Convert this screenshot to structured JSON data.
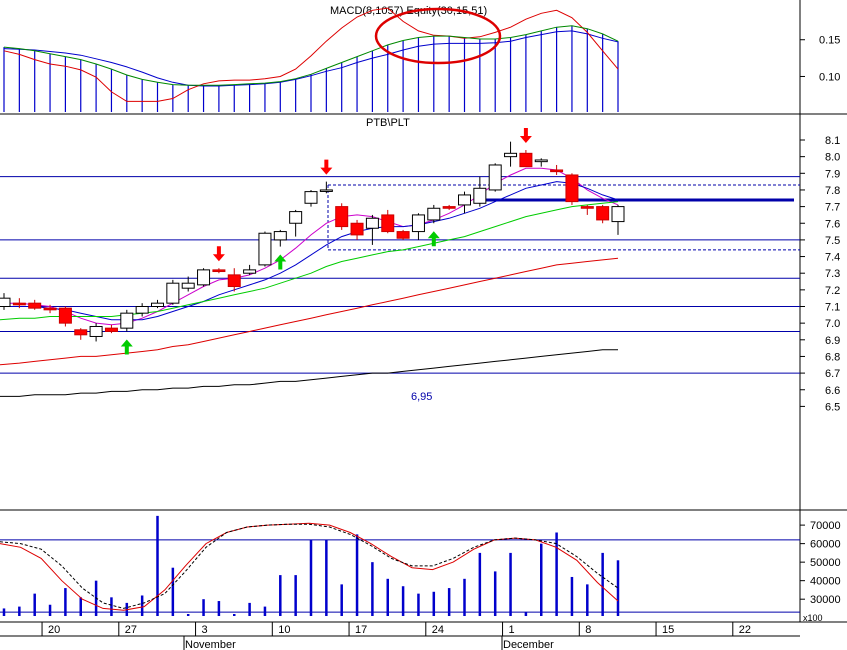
{
  "panels": {
    "top": {
      "label": "MACD(8,1057) Equity(30,15,51)",
      "y_ticks": [
        "0.15",
        "0.10"
      ]
    },
    "price": {
      "symbol": "PTB\\PLT",
      "y_ticks": [
        "8.1",
        "8.0",
        "7.9",
        "7.8",
        "7.7",
        "7.6",
        "7.5",
        "7.4",
        "7.3",
        "7.2",
        "7.1",
        "7.0",
        "6.9",
        "6.8",
        "6.7",
        "6.6",
        "6.5"
      ],
      "annotation": "6,95"
    },
    "volume": {
      "y_ticks": [
        "70000",
        "60000",
        "50000",
        "40000",
        "30000"
      ],
      "multiplier": "x100"
    }
  },
  "x_axis": {
    "day_labels": [
      "20",
      "27",
      "3",
      "10",
      "17",
      "24",
      "1",
      "8",
      "15",
      "22"
    ],
    "month_labels": [
      "November",
      "December"
    ]
  },
  "colors": {
    "up_body": "#ffffff",
    "down_body": "#ff0000",
    "ma_fast": "#cc00cc",
    "ma_mid": "#0000cc",
    "ma_slow": "#00cc00",
    "ma_long": "#dd0000",
    "ma_longest": "#000000",
    "hline": "#0000aa",
    "volume_bar": "#0000cc",
    "up_arrow": "#00cc00",
    "down_arrow": "#ff0000",
    "circle_blue": "#0000dd",
    "circle_red": "#dd0000"
  },
  "chart_data": [
    {
      "type": "candlestick",
      "title": "PTB\\PLT",
      "ylim": [
        6.45,
        8.15
      ],
      "x": [
        "Oct 17",
        "Oct 18",
        "Oct 19",
        "Oct 20",
        "Oct 21",
        "Oct 24",
        "Oct 25",
        "Oct 26",
        "Oct 27",
        "Oct 28",
        "Oct 31",
        "Nov 1",
        "Nov 2",
        "Nov 3",
        "Nov 4",
        "Nov 7",
        "Nov 8",
        "Nov 9",
        "Nov 10",
        "Nov 11",
        "Nov 14",
        "Nov 15",
        "Nov 16",
        "Nov 17",
        "Nov 18",
        "Nov 21",
        "Nov 22",
        "Nov 23",
        "Nov 24",
        "Nov 25",
        "Nov 28",
        "Nov 29",
        "Nov 30",
        "Dec 1",
        "Dec 2",
        "Dec 5",
        "Dec 6",
        "Dec 7",
        "Dec 8",
        "Dec 9",
        "Dec 12"
      ],
      "ohlc": [
        [
          7.1,
          7.18,
          7.08,
          7.15
        ],
        [
          7.12,
          7.15,
          7.09,
          7.11
        ],
        [
          7.12,
          7.14,
          7.08,
          7.09
        ],
        [
          7.09,
          7.11,
          7.06,
          7.08
        ],
        [
          7.09,
          7.1,
          6.98,
          7.0
        ],
        [
          6.96,
          6.97,
          6.9,
          6.93
        ],
        [
          6.92,
          7.0,
          6.89,
          6.98
        ],
        [
          6.97,
          6.99,
          6.94,
          6.95
        ],
        [
          6.97,
          7.08,
          6.95,
          7.06
        ],
        [
          7.06,
          7.12,
          7.04,
          7.1
        ],
        [
          7.1,
          7.14,
          7.09,
          7.12
        ],
        [
          7.12,
          7.26,
          7.11,
          7.24
        ],
        [
          7.21,
          7.28,
          7.19,
          7.24
        ],
        [
          7.23,
          7.33,
          7.22,
          7.32
        ],
        [
          7.32,
          7.33,
          7.3,
          7.31
        ],
        [
          7.29,
          7.33,
          7.19,
          7.22
        ],
        [
          7.3,
          7.35,
          7.29,
          7.32
        ],
        [
          7.35,
          7.55,
          7.34,
          7.54
        ],
        [
          7.5,
          7.56,
          7.46,
          7.55
        ],
        [
          7.6,
          7.68,
          7.52,
          7.67
        ],
        [
          7.72,
          7.8,
          7.7,
          7.79
        ],
        [
          7.8,
          7.85,
          7.78,
          7.8
        ],
        [
          7.7,
          7.72,
          7.56,
          7.58
        ],
        [
          7.6,
          7.62,
          7.5,
          7.53
        ],
        [
          7.57,
          7.65,
          7.47,
          7.63
        ],
        [
          7.65,
          7.68,
          7.54,
          7.55
        ],
        [
          7.55,
          7.56,
          7.5,
          7.51
        ],
        [
          7.55,
          7.66,
          7.5,
          7.65
        ],
        [
          7.62,
          7.71,
          7.6,
          7.69
        ],
        [
          7.7,
          7.71,
          7.68,
          7.69
        ],
        [
          7.71,
          7.79,
          7.66,
          7.77
        ],
        [
          7.72,
          7.88,
          7.7,
          7.81
        ],
        [
          7.8,
          7.96,
          7.79,
          7.95
        ],
        [
          8.0,
          8.09,
          7.94,
          8.02
        ],
        [
          8.02,
          8.04,
          7.94,
          7.94
        ],
        [
          7.97,
          7.99,
          7.94,
          7.98
        ],
        [
          7.92,
          7.95,
          7.89,
          7.91
        ],
        [
          7.89,
          7.9,
          7.71,
          7.73
        ],
        [
          7.7,
          7.71,
          7.65,
          7.69
        ],
        [
          7.7,
          7.71,
          7.6,
          7.62
        ],
        [
          7.61,
          7.71,
          7.53,
          7.7
        ]
      ],
      "moving_averages": [
        {
          "color": "#cc00cc",
          "values": [
            7.12,
            7.12,
            7.11,
            7.1,
            7.07,
            7.03,
            7.0,
            6.99,
            7.0,
            7.03,
            7.07,
            7.12,
            7.17,
            7.22,
            7.26,
            7.27,
            7.29,
            7.33,
            7.38,
            7.45,
            7.53,
            7.6,
            7.64,
            7.65,
            7.64,
            7.61,
            7.58,
            7.59,
            7.62,
            7.66,
            7.71,
            7.77,
            7.84,
            7.89,
            7.93,
            7.93,
            7.92,
            7.87,
            7.8,
            7.75,
            7.71
          ]
        },
        {
          "color": "#0000cc",
          "values": [
            7.1,
            7.1,
            7.1,
            7.09,
            7.08,
            7.06,
            7.04,
            7.02,
            7.02,
            7.02,
            7.04,
            7.07,
            7.1,
            7.13,
            7.17,
            7.2,
            7.23,
            7.26,
            7.3,
            7.35,
            7.41,
            7.47,
            7.52,
            7.55,
            7.57,
            7.58,
            7.58,
            7.59,
            7.61,
            7.63,
            7.66,
            7.69,
            7.73,
            7.77,
            7.81,
            7.83,
            7.85,
            7.84,
            7.81,
            7.77,
            7.74
          ]
        },
        {
          "color": "#00cc00",
          "values": [
            7.02,
            7.03,
            7.03,
            7.04,
            7.04,
            7.04,
            7.04,
            7.04,
            7.05,
            7.06,
            7.07,
            7.09,
            7.11,
            7.13,
            7.15,
            7.17,
            7.19,
            7.21,
            7.24,
            7.27,
            7.3,
            7.34,
            7.37,
            7.39,
            7.41,
            7.43,
            7.44,
            7.46,
            7.48,
            7.5,
            7.52,
            7.55,
            7.58,
            7.61,
            7.64,
            7.66,
            7.68,
            7.7,
            7.71,
            7.72,
            7.73
          ]
        },
        {
          "color": "#dd0000",
          "values": [
            6.75,
            6.76,
            6.77,
            6.78,
            6.79,
            6.8,
            6.8,
            6.81,
            6.82,
            6.83,
            6.84,
            6.86,
            6.87,
            6.89,
            6.91,
            6.93,
            6.95,
            6.97,
            6.99,
            7.01,
            7.03,
            7.05,
            7.07,
            7.09,
            7.11,
            7.13,
            7.15,
            7.17,
            7.19,
            7.21,
            7.23,
            7.25,
            7.27,
            7.29,
            7.31,
            7.33,
            7.35,
            7.36,
            7.37,
            7.38,
            7.39
          ]
        },
        {
          "color": "#000000",
          "values": [
            6.56,
            6.56,
            6.57,
            6.57,
            6.57,
            6.58,
            6.58,
            6.59,
            6.59,
            6.6,
            6.6,
            6.61,
            6.61,
            6.62,
            6.62,
            6.63,
            6.63,
            6.64,
            6.65,
            6.65,
            6.66,
            6.67,
            6.68,
            6.69,
            6.7,
            6.7,
            6.71,
            6.72,
            6.73,
            6.74,
            6.75,
            6.76,
            6.77,
            6.78,
            6.79,
            6.8,
            6.81,
            6.82,
            6.83,
            6.84,
            6.84
          ]
        }
      ],
      "horizontal_lines": [
        7.88,
        7.5,
        7.27,
        7.1,
        6.95,
        6.7
      ],
      "dashed_lines": [
        7.83,
        7.44
      ],
      "resistance_line": 7.74,
      "buy_arrows": [
        "Oct 27",
        "Nov 10",
        "Nov 24"
      ],
      "sell_arrows": [
        "Nov 4",
        "Nov 15",
        "Dec 2"
      ]
    },
    {
      "type": "line",
      "title": "MACD(8,1057) Equity(30,15,51)",
      "ylim": [
        0.053,
        0.2
      ],
      "x": [
        "Oct 17",
        "Oct 18",
        "Oct 19",
        "Oct 20",
        "Oct 21",
        "Oct 24",
        "Oct 25",
        "Oct 26",
        "Oct 27",
        "Oct 28",
        "Oct 31",
        "Nov 1",
        "Nov 2",
        "Nov 3",
        "Nov 4",
        "Nov 7",
        "Nov 8",
        "Nov 9",
        "Nov 10",
        "Nov 11",
        "Nov 14",
        "Nov 15",
        "Nov 16",
        "Nov 17",
        "Nov 18",
        "Nov 21",
        "Nov 22",
        "Nov 23",
        "Nov 24",
        "Nov 25",
        "Nov 28",
        "Nov 29",
        "Nov 30",
        "Dec 1",
        "Dec 2",
        "Dec 5",
        "Dec 6",
        "Dec 7",
        "Dec 8",
        "Dec 9",
        "Dec 12"
      ],
      "series": [
        {
          "color": "#0000cc",
          "values": [
            0.138,
            0.137,
            0.136,
            0.134,
            0.132,
            0.129,
            0.124,
            0.119,
            0.113,
            0.106,
            0.098,
            0.092,
            0.088,
            0.087,
            0.087,
            0.088,
            0.089,
            0.09,
            0.092,
            0.096,
            0.101,
            0.107,
            0.112,
            0.119,
            0.125,
            0.13,
            0.136,
            0.141,
            0.144,
            0.145,
            0.145,
            0.145,
            0.146,
            0.148,
            0.153,
            0.157,
            0.161,
            0.162,
            0.158,
            0.152,
            0.147
          ]
        },
        {
          "color": "#dd0000",
          "values": [
            0.135,
            0.13,
            0.123,
            0.117,
            0.114,
            0.109,
            0.099,
            0.079,
            0.066,
            0.066,
            0.066,
            0.07,
            0.082,
            0.09,
            0.094,
            0.095,
            0.095,
            0.097,
            0.1,
            0.11,
            0.128,
            0.148,
            0.166,
            0.181,
            0.19,
            0.193,
            0.175,
            0.162,
            0.156,
            0.155,
            0.152,
            0.154,
            0.16,
            0.167,
            0.178,
            0.186,
            0.19,
            0.18,
            0.16,
            0.135,
            0.11
          ]
        },
        {
          "color": "#008800",
          "values": [
            0.14,
            0.138,
            0.135,
            0.131,
            0.127,
            0.123,
            0.117,
            0.11,
            0.102,
            0.096,
            0.092,
            0.089,
            0.088,
            0.088,
            0.088,
            0.089,
            0.09,
            0.091,
            0.093,
            0.097,
            0.103,
            0.111,
            0.119,
            0.127,
            0.135,
            0.143,
            0.149,
            0.153,
            0.155,
            0.155,
            0.153,
            0.151,
            0.151,
            0.153,
            0.157,
            0.162,
            0.167,
            0.169,
            0.165,
            0.158,
            0.148
          ]
        }
      ],
      "markers": {
        "blue_circles": 3,
        "red_ellipse": 1
      }
    },
    {
      "type": "bar",
      "title": "Volume",
      "ylim": [
        22000,
        76000
      ],
      "multiplier": "x100",
      "x": [
        "Oct 17",
        "Oct 18",
        "Oct 19",
        "Oct 20",
        "Oct 21",
        "Oct 24",
        "Oct 25",
        "Oct 26",
        "Oct 27",
        "Oct 28",
        "Oct 31",
        "Nov 1",
        "Nov 2",
        "Nov 3",
        "Nov 4",
        "Nov 7",
        "Nov 8",
        "Nov 9",
        "Nov 10",
        "Nov 11",
        "Nov 14",
        "Nov 15",
        "Nov 16",
        "Nov 17",
        "Nov 18",
        "Nov 21",
        "Nov 22",
        "Nov 23",
        "Nov 24",
        "Nov 25",
        "Nov 28",
        "Nov 29",
        "Nov 30",
        "Dec 1",
        "Dec 2",
        "Dec 5",
        "Dec 6",
        "Dec 7",
        "Dec 8",
        "Dec 9",
        "Dec 12"
      ],
      "values": [
        25000,
        26000,
        33000,
        27000,
        36000,
        31000,
        40000,
        31000,
        28000,
        32000,
        75000,
        47000,
        22000,
        30000,
        29000,
        22000,
        28000,
        26000,
        43000,
        43000,
        62000,
        62000,
        38000,
        65000,
        50000,
        41000,
        37000,
        33000,
        34000,
        36000,
        41000,
        55000,
        45000,
        55000,
        23000,
        60000,
        66000,
        42000,
        38000,
        55000,
        51000
      ],
      "oscillator": [
        {
          "color": "#dd0000",
          "values": [
            60000,
            58000,
            52000,
            40000,
            30000,
            25000,
            24000,
            26000,
            35000,
            48000,
            60000,
            66000,
            69000,
            70000,
            70500,
            71000,
            70000,
            66000,
            60000,
            53000,
            47000,
            46000,
            50000,
            57000,
            62000,
            63000,
            62000,
            58000,
            51000,
            39000,
            29000
          ]
        },
        {
          "color": "#000000",
          "dashed": true,
          "values": [
            61000,
            60000,
            57000,
            48000,
            36000,
            28000,
            25000,
            28000,
            33000,
            45000,
            58000,
            66000,
            69000,
            70000,
            70500,
            70500,
            69000,
            65000,
            59000,
            52000,
            48000,
            48000,
            52000,
            58000,
            62000,
            63000,
            62000,
            60000,
            53000,
            44000,
            36000
          ]
        }
      ],
      "horizontal_lines": [
        62000,
        23000
      ]
    }
  ]
}
